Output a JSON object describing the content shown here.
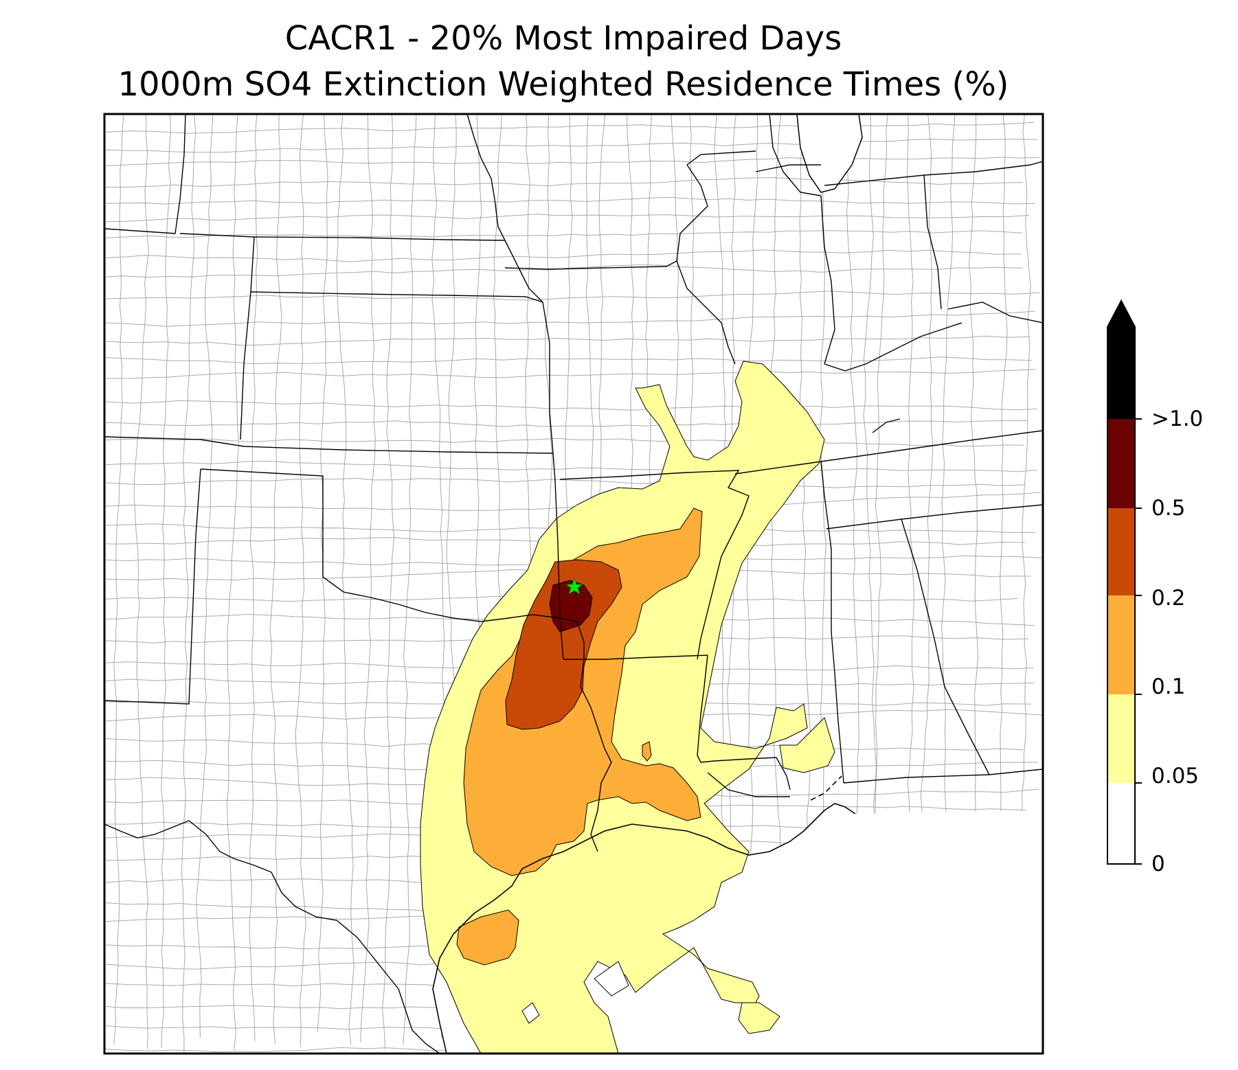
{
  "title": {
    "line1": "CACR1 - 20% Most Impaired Days",
    "line2": "1000m SO4 Extinction Weighted Residence Times (%)"
  },
  "map": {
    "site_marker": "green-star",
    "region": "South-central United States with Gulf of Mexico",
    "land_fill": "#ffffff",
    "county_line_color": "#a0a0a0",
    "state_line_color": "#000000"
  },
  "colorbar": {
    "ticks": [
      "0",
      "0.05",
      "0.1",
      "0.2",
      "0.5",
      ">1.0"
    ],
    "bins": [
      {
        "range": "0 - 0.05",
        "color": "#ffffff"
      },
      {
        "range": "0.05 - 0.1",
        "color": "#ffff9c"
      },
      {
        "range": "0.1 - 0.2",
        "color": "#fdae38"
      },
      {
        "range": "0.2 - 0.5",
        "color": "#c94a08"
      },
      {
        "range": "0.5 - 1.0",
        "color": "#6b0000"
      }
    ],
    "extend_color": "#000000"
  },
  "colors": {
    "c005": "#ffff9c",
    "c01": "#fdae38",
    "c02": "#c94a08",
    "c05": "#6b0000",
    "star": "#00ee00"
  }
}
